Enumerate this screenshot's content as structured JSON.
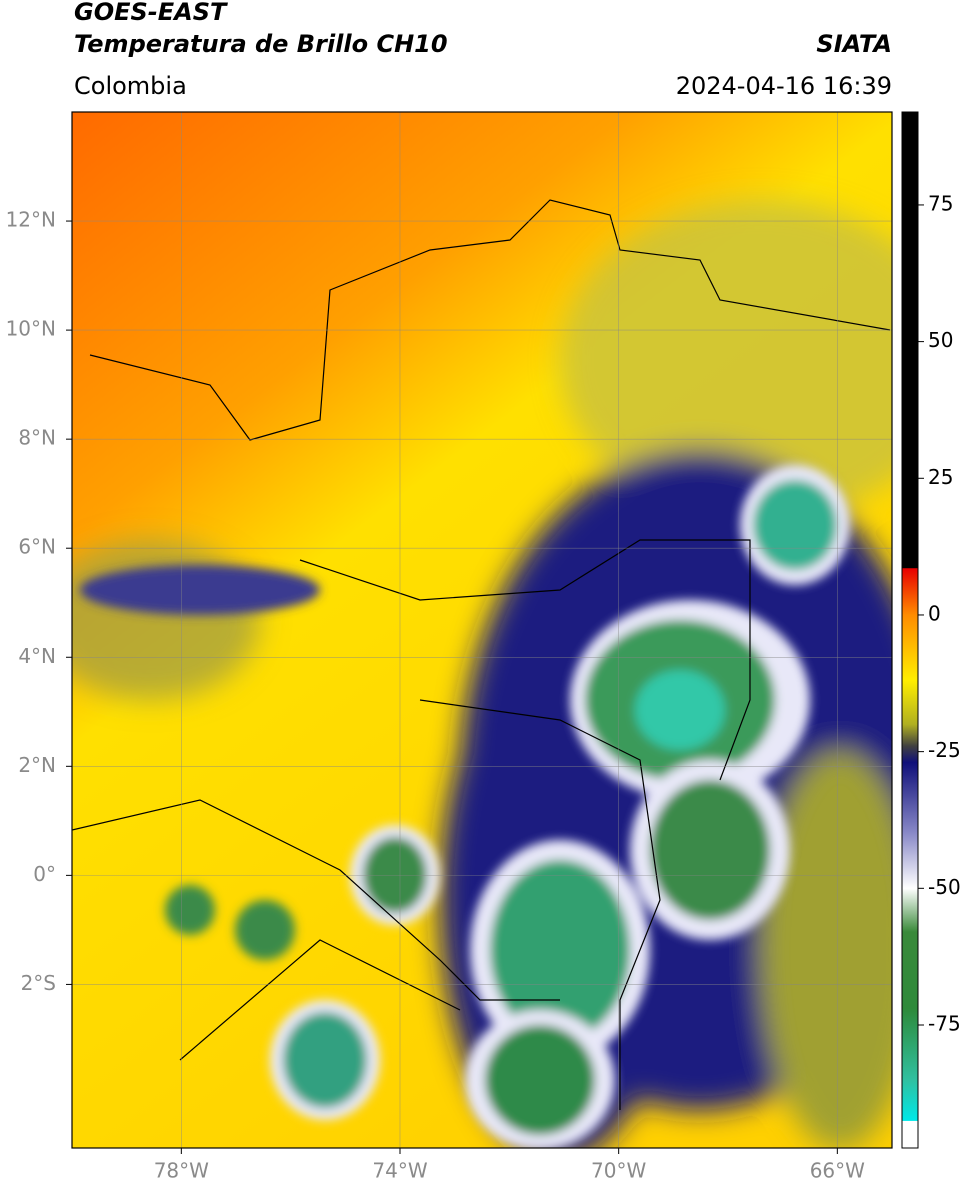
{
  "header": {
    "title": "GOES-EAST",
    "subtitle": "Temperatura de Brillo CH10",
    "region": "Colombia",
    "source": "SIATA",
    "datetime": "2024-04-16 16:39"
  },
  "map": {
    "lonlim": [
      -80,
      -65
    ],
    "latlim": [
      -5,
      14
    ],
    "lonticks": [
      {
        "value": -78,
        "label": "78°W"
      },
      {
        "value": -74,
        "label": "74°W"
      },
      {
        "value": -70,
        "label": "70°W"
      },
      {
        "value": -66,
        "label": "66°W"
      }
    ],
    "latticks": [
      {
        "value": 12,
        "label": "12°N"
      },
      {
        "value": 10,
        "label": "10°N"
      },
      {
        "value": 8,
        "label": "8°N"
      },
      {
        "value": 6,
        "label": "6°N"
      },
      {
        "value": 4,
        "label": "4°N"
      },
      {
        "value": 2,
        "label": "2°N"
      },
      {
        "value": 0,
        "label": "0°"
      },
      {
        "value": -2,
        "label": "2°S"
      }
    ],
    "grid": true
  },
  "colorbar": {
    "lim": [
      -97.5,
      92
    ],
    "ticks": [
      75,
      50,
      25,
      0,
      -25,
      -50,
      -75
    ],
    "colormap": [
      {
        "value": 92,
        "color": "#000000"
      },
      {
        "value": 8.6,
        "color": "#000000"
      },
      {
        "value": 8.5,
        "color": "#e80000"
      },
      {
        "value": 0,
        "color": "#ff8c00"
      },
      {
        "value": -12,
        "color": "#ffee00"
      },
      {
        "value": -20,
        "color": "#b0b020"
      },
      {
        "value": -24,
        "color": "#404040"
      },
      {
        "value": -27,
        "color": "#10107a"
      },
      {
        "value": -40,
        "color": "#8a8ac8"
      },
      {
        "value": -50,
        "color": "#ffffff"
      },
      {
        "value": -58,
        "color": "#3a8a3a"
      },
      {
        "value": -72,
        "color": "#2e8a3a"
      },
      {
        "value": -85,
        "color": "#30c0a0"
      },
      {
        "value": -92.5,
        "color": "#00e8e8"
      },
      {
        "value": -92.6,
        "color": "#ffffff"
      },
      {
        "value": -97.5,
        "color": "#ffffff"
      }
    ]
  }
}
